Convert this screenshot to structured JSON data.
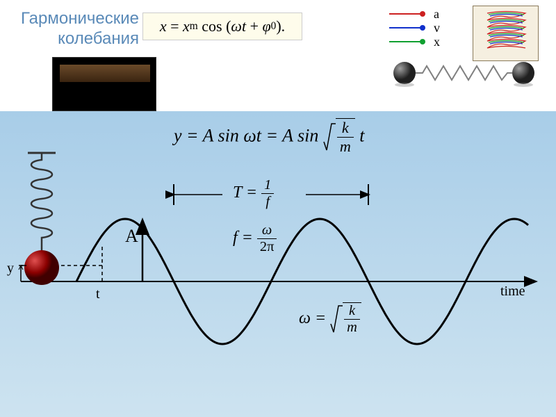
{
  "title": {
    "line1": "Гармонические",
    "line2": "колебания",
    "color": "#5a8ab8",
    "fontsize": 24
  },
  "headerFormula": {
    "text": "x = xₘ cos (ωt + φ₀).",
    "bg": "#fefceb",
    "border": "#cccccc",
    "fontsize": 22
  },
  "legend": {
    "items": [
      {
        "label": "a",
        "color": "#cc2020"
      },
      {
        "label": "v",
        "color": "#1030cc"
      },
      {
        "label": "x",
        "color": "#10a030"
      }
    ],
    "fontsize": 18
  },
  "spring3dBox": {
    "bg": "#f5efe0",
    "border": "#8a7a5a"
  },
  "springBalls": {
    "ballColor": "#404040",
    "springColor": "#808080"
  },
  "photo": {
    "bg": "#000000",
    "tableGradTop": "#6a4a2a",
    "tableGradBot": "#3a2410"
  },
  "mainFormula": {
    "prefix": "y = A sin ωt = A sin",
    "sqrtNum": "k",
    "sqrtDen": "m",
    "suffix": "t",
    "fontsize": 26
  },
  "diagram": {
    "bgTop": "#a8cde8",
    "bgBottom": "#cde3f0",
    "axisColor": "#000000",
    "waveColor": "#000000",
    "springColor": "#333333",
    "ballGrad1": "#e05050",
    "ballGrad2": "#8b0000",
    "ballGrad3": "#400000",
    "wave": {
      "type": "sine",
      "amplitude": 90,
      "period": 280,
      "phase": 0,
      "xStart": 110,
      "xEnd": 760,
      "yBaseline": 245
    },
    "period": {
      "label": "T =",
      "num": "1",
      "den": "f"
    },
    "freq": {
      "label": "f =",
      "num": "ω",
      "den": "2π"
    },
    "omega": {
      "label": "ω =",
      "sqrtNum": "k",
      "sqrtDen": "m"
    },
    "amplitude": "A",
    "yAxis": "y",
    "tAxis": "t",
    "timeAxis": "time"
  }
}
